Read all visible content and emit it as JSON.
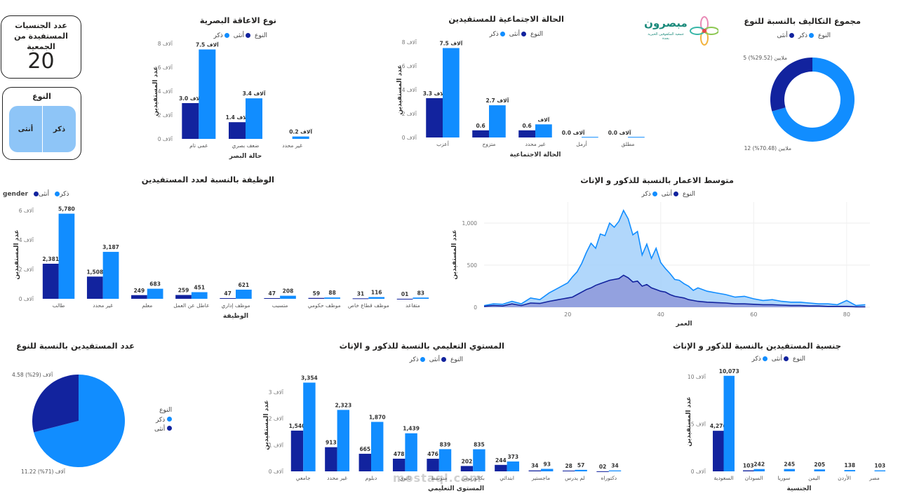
{
  "colors": {
    "male": "#118DFF",
    "female": "#12239E",
    "male_area": "#a9d3fb",
    "female_area": "#8a8fd6",
    "tile": "#8ec5f7"
  },
  "card_nationalities": {
    "title": "عدد الجنسيات المستفيدة من الجمعية",
    "value": "20"
  },
  "gender_slicer": {
    "title": "النوع",
    "male": "ذكر",
    "female": "أنثى"
  },
  "logo": {
    "name": "مبصرون",
    "sub": "جمعية المكفوفين الخيرية\nبجدة"
  },
  "legend_common": {
    "label": "النوع",
    "male": "ذكر",
    "female": "أنثى"
  },
  "legend_gender": {
    "label": "gender",
    "male": "ذكر",
    "female": "أنثى"
  },
  "chart_data": [
    {
      "id": "visual_impairment",
      "type": "bar",
      "title": "نوع الاعاقة البصرية",
      "xlabel": "حالة البصر",
      "ylabel": "عدد المستفيدين",
      "categories": [
        "عمى تام",
        "ضعف بصري",
        "غير محدد"
      ],
      "series": [
        {
          "name": "أنثى",
          "values": [
            3.0,
            1.4,
            null
          ],
          "labels": [
            "3.0 آلاف",
            "1.4 آلاف",
            ""
          ]
        },
        {
          "name": "ذكر",
          "values": [
            7.5,
            3.4,
            0.2
          ],
          "labels": [
            "7.5 آلاف",
            "3.4 آلاف",
            "0.2 آلاف"
          ]
        }
      ],
      "yticks": [
        0,
        2,
        4,
        6,
        8
      ],
      "ytick_labels": [
        "0 آلاف",
        "2 آلاف",
        "4 آلاف",
        "6 آلاف",
        "8 آلاف"
      ],
      "ylim": [
        0,
        8
      ]
    },
    {
      "id": "marital_status",
      "type": "bar",
      "title": "الحالة الاجتماعية للمستفيدين",
      "xlabel": "الحالة الاجتماعية",
      "ylabel": "عدد المستفيدين",
      "categories": [
        "أعزب",
        "متزوج",
        "غير محدد",
        "أرمل",
        "مطلق"
      ],
      "series": [
        {
          "name": "أنثى",
          "values": [
            3.3,
            0.6,
            0.6,
            0.0,
            0.0
          ],
          "labels": [
            "3.3 آلاف",
            "0.6",
            "0.6",
            "0.0 آلاف",
            "0.0 آلاف"
          ]
        },
        {
          "name": "ذكر",
          "values": [
            7.5,
            2.7,
            1.1,
            0.05,
            0.05
          ],
          "labels": [
            "7.5 آلاف",
            "2.7 آلاف",
            "آلاف",
            "",
            ""
          ]
        }
      ],
      "yticks": [
        0,
        2,
        4,
        6,
        8
      ],
      "ytick_labels": [
        "0 آلاف",
        "2 آلاف",
        "4 آلاف",
        "6 آلاف",
        "8 آلاف"
      ],
      "ylim": [
        0,
        8
      ]
    },
    {
      "id": "costs_by_gender",
      "type": "pie",
      "title": "مجموع التكاليف بالنسبة للنوع",
      "slices": [
        {
          "name": "ذكر",
          "value": 70.48,
          "label": "12 ملايين (70.48%)"
        },
        {
          "name": "أنثى",
          "value": 29.52,
          "label": "5 ملايين (29.52%)"
        }
      ]
    },
    {
      "id": "occupation",
      "type": "bar",
      "title": "الوظيفة بالنسبة لعدد المستفيدين",
      "xlabel": "الوظيفة",
      "ylabel": "عدد المستفيدين",
      "categories": [
        "طالب",
        "غير محدد",
        "معلم",
        "عاطل عن العمل",
        "موظف إداري",
        "متسبب",
        "موظف حكومي",
        "موظف قطاع خاص",
        "متقاعد"
      ],
      "series": [
        {
          "name": "أنثى",
          "values": [
            2381,
            1508,
            249,
            259,
            47,
            47,
            59,
            31,
            1
          ],
          "labels": [
            "2,381",
            "1,508",
            "249",
            "259",
            "47",
            "47",
            "59",
            "31",
            "01"
          ]
        },
        {
          "name": "ذكر",
          "values": [
            5780,
            3187,
            683,
            451,
            621,
            208,
            88,
            116,
            83
          ],
          "labels": [
            "5,780",
            "3,187",
            "683",
            "451",
            "621",
            "208",
            "88",
            "116",
            "83"
          ]
        }
      ],
      "yticks": [
        0,
        2000,
        4000,
        6000
      ],
      "ytick_labels": [
        "0 آلاف",
        "2 آلاف",
        "4 آلاف",
        "6 آلاف"
      ],
      "ylim": [
        0,
        6000
      ]
    },
    {
      "id": "age_avg",
      "type": "area",
      "title": "متوسط الاعمار بالنسبة للذكور و الإناث",
      "xlabel": "العمر",
      "ylabel": "عدد المستفيدين",
      "xlim": [
        2,
        85
      ],
      "ylim": [
        0,
        1250
      ],
      "xticks": [
        20,
        40,
        60,
        80
      ],
      "yticks": [
        0,
        500,
        1000
      ],
      "ytick_labels": [
        "0",
        "500",
        "1,000"
      ],
      "x": [
        2,
        4,
        6,
        8,
        10,
        12,
        14,
        16,
        18,
        19,
        20,
        21,
        22,
        23,
        24,
        25,
        26,
        27,
        28,
        29,
        30,
        31,
        32,
        33,
        34,
        35,
        36,
        37,
        38,
        39,
        40,
        41,
        42,
        43,
        44,
        45,
        46,
        47,
        48,
        50,
        52,
        54,
        56,
        58,
        60,
        62,
        64,
        66,
        68,
        70,
        72,
        74,
        76,
        78,
        80,
        82,
        84
      ],
      "series": [
        {
          "name": "ذكر",
          "values": [
            20,
            40,
            35,
            70,
            40,
            110,
            90,
            170,
            230,
            260,
            290,
            360,
            420,
            520,
            650,
            760,
            700,
            870,
            850,
            1000,
            950,
            1020,
            1150,
            1050,
            860,
            900,
            620,
            750,
            580,
            700,
            530,
            460,
            400,
            330,
            320,
            280,
            250,
            200,
            230,
            190,
            170,
            150,
            120,
            130,
            100,
            80,
            90,
            70,
            60,
            60,
            50,
            40,
            40,
            30,
            80,
            20,
            30
          ]
        },
        {
          "name": "أنثى",
          "values": [
            10,
            20,
            15,
            40,
            20,
            50,
            45,
            70,
            90,
            100,
            110,
            120,
            150,
            180,
            210,
            230,
            260,
            280,
            300,
            320,
            330,
            340,
            380,
            350,
            300,
            310,
            250,
            270,
            230,
            210,
            190,
            180,
            150,
            130,
            120,
            110,
            90,
            80,
            70,
            60,
            55,
            50,
            40,
            40,
            35,
            30,
            30,
            25,
            20,
            20,
            15,
            15,
            10,
            10,
            10,
            5,
            5
          ]
        }
      ]
    },
    {
      "id": "beneficiaries_by_gender",
      "type": "pie",
      "title": "عدد المستفيدين بالنسبة للنوع",
      "slices": [
        {
          "name": "ذكر",
          "value": 71,
          "label": "11.22 آلاف (71%)"
        },
        {
          "name": "أنثى",
          "value": 29,
          "label": "4.58 آلاف (29%)"
        }
      ]
    },
    {
      "id": "education",
      "type": "bar",
      "title": "المستوي التعليمي بالنسبة للذكور و الإناث",
      "xlabel": "المستوى التعليمي",
      "ylabel": "عدد المستفيدين",
      "categories": [
        "جامعي",
        "غير محدد",
        "دبلوم",
        "ثانوي",
        "متوسط",
        "بكالوريوس",
        "ابتدائي",
        "ماجستير",
        "لم يدرس",
        "دكتوراه"
      ],
      "series": [
        {
          "name": "أنثى",
          "values": [
            1540,
            913,
            665,
            478,
            476,
            202,
            244,
            34,
            28,
            2
          ],
          "labels": [
            "1,540",
            "913",
            "665",
            "478",
            "476",
            "202",
            "244",
            "34",
            "28",
            "02"
          ]
        },
        {
          "name": "ذكر",
          "values": [
            3354,
            2323,
            1870,
            1439,
            839,
            835,
            373,
            93,
            57,
            34
          ],
          "labels": [
            "3,354",
            "2,323",
            "1,870",
            "1,439",
            "839",
            "835",
            "373",
            "93",
            "57",
            "34"
          ]
        }
      ],
      "yticks": [
        0,
        1000,
        2000,
        3000
      ],
      "ytick_labels": [
        "0 آلاف",
        "1 آلاف",
        "2 آلاف",
        "3 آلاف"
      ],
      "ylim": [
        0,
        3500
      ]
    },
    {
      "id": "nationality",
      "type": "bar",
      "title": "جنسية المستفيدين بالنسبة للذكور و الإناث",
      "xlabel": "الجنسية",
      "ylabel": "عدد المستفيدين",
      "categories": [
        "السعودية",
        "السودان",
        "سوريا",
        "اليمن",
        "الأردن",
        "مصر"
      ],
      "series": [
        {
          "name": "أنثى",
          "values": [
            4276,
            103,
            0,
            0,
            0,
            0
          ],
          "labels": [
            "4,276",
            "103",
            "",
            "",
            "",
            ""
          ]
        },
        {
          "name": "ذكر",
          "values": [
            10073,
            242,
            245,
            205,
            138,
            103
          ],
          "labels": [
            "10,073",
            "242",
            "245",
            "205",
            "138",
            "103"
          ]
        }
      ],
      "yticks": [
        0,
        5000,
        10000
      ],
      "ytick_labels": [
        "0 آلاف",
        "5 آلاف",
        "10 آلاف"
      ],
      "ylim": [
        0,
        10500
      ]
    }
  ],
  "watermark": {
    "text": "mostaql.com"
  }
}
